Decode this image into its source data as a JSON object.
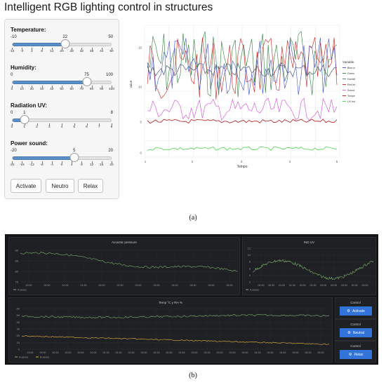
{
  "title": "Intelligent RGB lighting control in structures",
  "sliders": [
    {
      "label": "Temperature:",
      "min": -10,
      "max": 50,
      "value": 22,
      "ticks": [
        "-10",
        "-4",
        "2",
        "8",
        "14",
        "20",
        "26",
        "32",
        "38",
        "44",
        "50"
      ]
    },
    {
      "label": "Humidity:",
      "min": 0,
      "max": 100,
      "value": 75,
      "ticks": [
        "0",
        "10",
        "20",
        "30",
        "40",
        "50",
        "60",
        "70",
        "80",
        "90",
        "100"
      ]
    },
    {
      "label": "Radiation UV:",
      "min": 0,
      "max": 8,
      "value": 1,
      "ticks": [
        "0",
        "1",
        "2",
        "3",
        "4",
        "5",
        "6",
        "7",
        "8"
      ]
    },
    {
      "label": "Power sound:",
      "min": -20,
      "max": 20,
      "value": 5,
      "ticks": [
        "-20",
        "-16",
        "-12",
        "-8",
        "-4",
        "0",
        "4",
        "8",
        "12",
        "16",
        "20"
      ]
    }
  ],
  "buttons_a": [
    "Activate",
    "Neutro",
    "Relax"
  ],
  "caption_a": "(a)",
  "chart_a": {
    "xlabel": "Tempo",
    "ylabel": "value",
    "xticks": [
      "1",
      "2",
      "3",
      "4",
      "5"
    ],
    "yticks": [
      "15",
      "10",
      "5",
      "0"
    ],
    "legend_title": "Variable",
    "legend": [
      {
        "name": "Blue intensity",
        "color": "#3d4fc9"
      },
      {
        "name": "Green intensity",
        "color": "#2f7d3c"
      },
      {
        "name": "Humidity",
        "color": "#5a6a88"
      },
      {
        "name": "Red intensity",
        "color": "#c92020"
      },
      {
        "name": "Sound Power",
        "color": "#d85fd8"
      },
      {
        "name": "Temperature",
        "color": "#b51414"
      },
      {
        "name": "UV Index",
        "color": "#4cd44c"
      }
    ]
  },
  "dashboard": {
    "acoustic": {
      "title": "Acoustic pressure",
      "yticks": [
        "90",
        "85",
        "80",
        "75"
      ],
      "xticks": [
        "00:00",
        "00:30",
        "01:00",
        "01:30",
        "02:00",
        "02:30",
        "03:00",
        "03:30",
        "04:00",
        "04:30",
        "05:00",
        "05:30"
      ],
      "legend": "A series"
    },
    "uv": {
      "title": "IND UV",
      "yticks": [
        "12",
        "10",
        "8",
        "6",
        "4",
        "2"
      ],
      "xticks": [
        "00:00",
        "00:30",
        "01:00",
        "01:30",
        "02:00",
        "02:30",
        "03:00",
        "03:30",
        "04:00",
        "04:30",
        "05:00"
      ],
      "legend": "A series"
    },
    "temp": {
      "title": "Temp °C y RH %",
      "yticks": [
        "60",
        "50",
        "40",
        "30",
        "20",
        "10",
        "0"
      ],
      "xticks": [
        "23:45",
        "00:00",
        "00:15",
        "00:30",
        "00:45",
        "01:00",
        "01:15",
        "01:30",
        "01:45",
        "02:00",
        "02:15",
        "02:30",
        "02:45",
        "03:00",
        "03:15",
        "03:30",
        "03:45",
        "04:00",
        "04:15",
        "04:30",
        "04:45",
        "05:00",
        "05:15",
        "05:30"
      ],
      "legend": [
        "A-series",
        "B-series"
      ]
    },
    "controls": [
      {
        "title": "Control",
        "label": "Activate"
      },
      {
        "title": "Control",
        "label": "Neutral"
      },
      {
        "title": "Control",
        "label": "Relax"
      }
    ]
  },
  "caption_b": "(b)"
}
